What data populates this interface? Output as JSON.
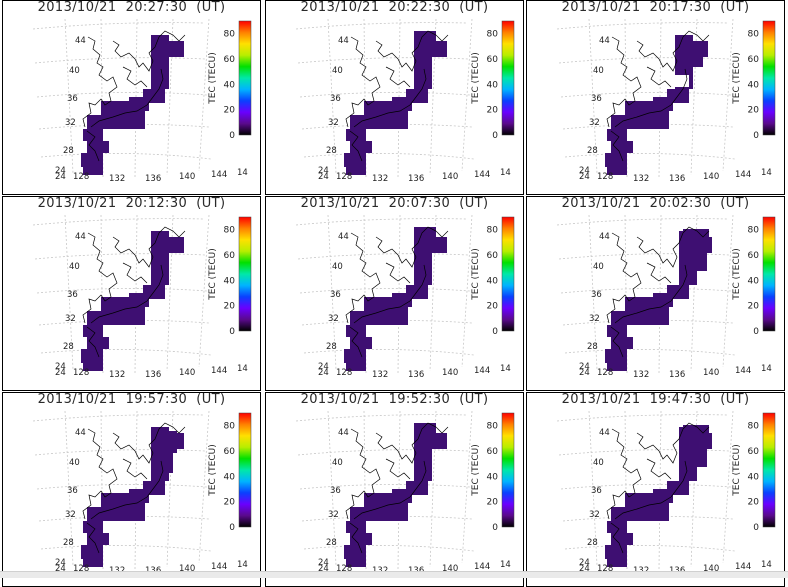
{
  "panels": [
    {
      "title": "2013/10/21  20:27:30  (UT)",
      "variant": 0
    },
    {
      "title": "2013/10/21  20:22:30  (UT)",
      "variant": 1
    },
    {
      "title": "2013/10/21  20:17:30  (UT)",
      "variant": 2
    },
    {
      "title": "2013/10/21  20:12:30  (UT)",
      "variant": 0
    },
    {
      "title": "2013/10/21  20:07:30  (UT)",
      "variant": 1
    },
    {
      "title": "2013/10/21  20:02:30  (UT)",
      "variant": 3
    },
    {
      "title": "2013/10/21  19:57:30  (UT)",
      "variant": 4
    },
    {
      "title": "2013/10/21  19:52:30  (UT)",
      "variant": 1
    },
    {
      "title": "2013/10/21  19:47:30  (UT)",
      "variant": 3
    }
  ],
  "map": {
    "lat_labels": [
      "44",
      "40",
      "36",
      "32",
      "28",
      "24",
      "24"
    ],
    "lon_labels": [
      "128",
      "132",
      "136",
      "140",
      "144",
      "14"
    ],
    "fill_color": "#3e0f72",
    "grid_color": "#c8c8c8",
    "coast_color": "#000000"
  },
  "colorbar": {
    "label": "TEC (TECU)",
    "ticks": [
      "80",
      "60",
      "40",
      "20",
      "0"
    ],
    "range": [
      0,
      90
    ],
    "colors": [
      "#000000",
      "#5a0a8c",
      "#6a00ff",
      "#0a40ff",
      "#00b4ff",
      "#00e8a8",
      "#00e000",
      "#b8ee00",
      "#ffe000",
      "#ff8000",
      "#ff0000"
    ]
  }
}
